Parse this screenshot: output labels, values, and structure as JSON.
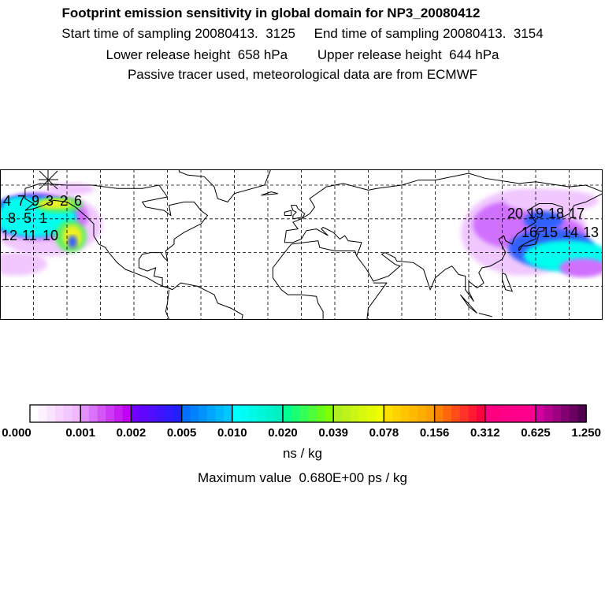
{
  "header": {
    "title": "Footprint emission sensitivity in global domain for NP3_20080412",
    "sampling": "Start time of sampling 20080413.  3125     End time of sampling 20080413.  3154",
    "release": "Lower release height  658 hPa        Upper release height  644 hPa",
    "tracer": "Passive tracer used, meteorological data are from ECMWF"
  },
  "map": {
    "west_labels": [
      "4",
      "7",
      "9",
      "3",
      "2",
      "6",
      "8",
      "5",
      "1",
      "12",
      "11",
      "10"
    ],
    "east_labels": [
      "20",
      "19",
      "18",
      "17",
      "16",
      "15",
      "14",
      "13"
    ],
    "colors": {
      "cyan": "#00ffee",
      "blue": "#3060ff",
      "green": "#60f060",
      "yellow": "#f0f020",
      "magenta": "#d070ff",
      "haze": "#f0c8ff"
    }
  },
  "colorbar": {
    "ticks": [
      "0.000",
      "0.001",
      "0.002",
      "0.005",
      "0.010",
      "0.020",
      "0.039",
      "0.078",
      "0.156",
      "0.312",
      "0.625",
      "1.250"
    ],
    "segments": [
      [
        "#ffffff",
        "#f0b8ff"
      ],
      [
        "#e090ff",
        "#c000f0"
      ],
      [
        "#7000ff",
        "#2020ff"
      ],
      [
        "#0070ff",
        "#00c8ff"
      ],
      [
        "#00ffff",
        "#00f0c0"
      ],
      [
        "#00ff90",
        "#80ff00"
      ],
      [
        "#b0f020",
        "#f0ff00"
      ],
      [
        "#ffe000",
        "#ffa000"
      ],
      [
        "#ff8000",
        "#ff0040"
      ],
      [
        "#ff0080",
        "#ff0090"
      ],
      [
        "#d000a0",
        "#500050"
      ]
    ],
    "units": "ns / kg",
    "max_value": "Maximum value  0.680E+00 ps / kg"
  }
}
